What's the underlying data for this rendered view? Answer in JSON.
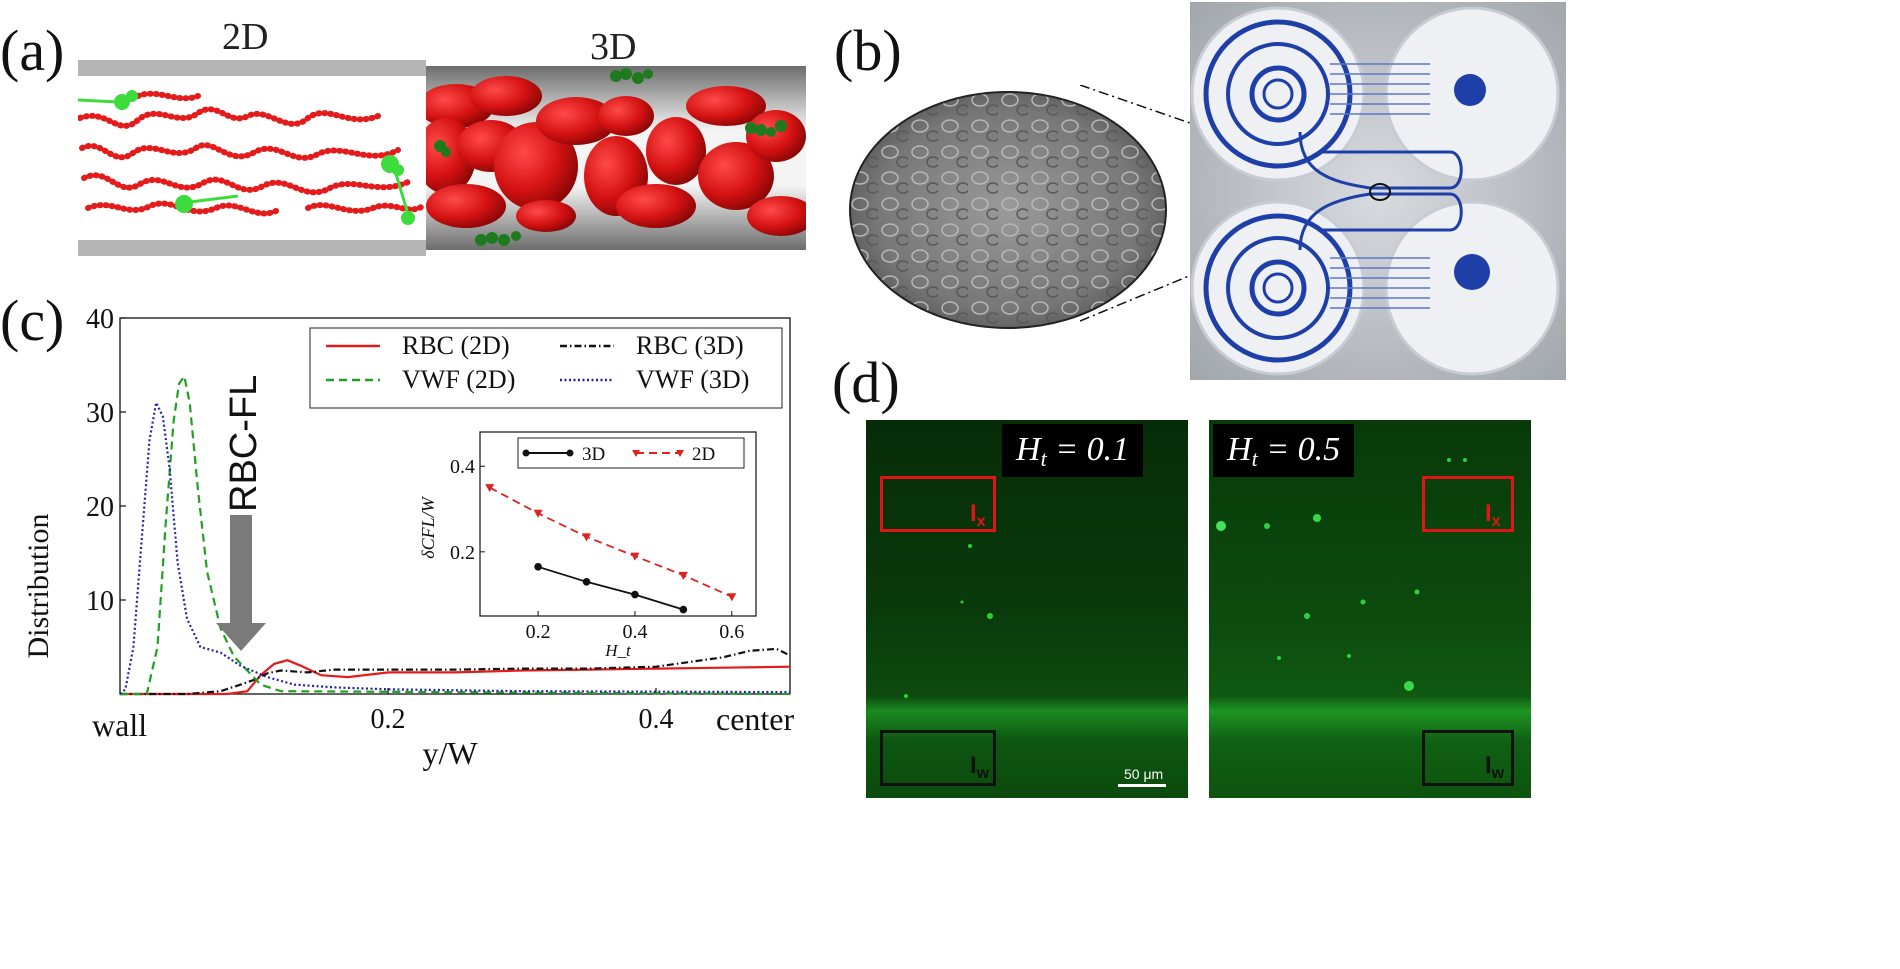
{
  "panels": {
    "a": {
      "label": "(a)",
      "title_2d": "2D",
      "title_3d": "3D"
    },
    "b": {
      "label": "(b)"
    },
    "c": {
      "label": "(c)",
      "annotation": "RBC-FL"
    },
    "d": {
      "label": "(d)",
      "left_value": "H_t = 0.1",
      "right_value": "H_t = 0.5",
      "roi_x": "I_x",
      "roi_w": "I_w",
      "scale_bar": "50 μm"
    }
  },
  "colors": {
    "rbc": "#e31b1b",
    "vwf": "#22cc22",
    "channel_wall": "#b5b5b5",
    "fluor_green": "#0f5a12",
    "roi_red": "#e01515",
    "roi_black": "#111111",
    "chip_blue": "#1e3ea8"
  },
  "chart_data": [
    {
      "type": "line",
      "xlabel": "y/W",
      "ylabel": "Distribution",
      "xlim": [
        0,
        0.5
      ],
      "ylim": [
        0,
        40
      ],
      "xticks": [
        0.2,
        0.4
      ],
      "yticks": [
        10,
        20,
        30,
        40
      ],
      "x_end_labels": {
        "left": "wall",
        "right": "center"
      },
      "legend_position": "top-right",
      "series": [
        {
          "name": "RBC (2D)",
          "color": "#e31b1b",
          "style": "solid",
          "x": [
            0.0,
            0.08,
            0.095,
            0.105,
            0.115,
            0.125,
            0.135,
            0.15,
            0.17,
            0.2,
            0.25,
            0.3,
            0.35,
            0.4,
            0.45,
            0.5
          ],
          "y": [
            0,
            0,
            0.3,
            2.0,
            3.2,
            3.6,
            3.0,
            2.0,
            1.8,
            2.3,
            2.3,
            2.5,
            2.6,
            2.7,
            2.8,
            2.9
          ]
        },
        {
          "name": "RBC (3D)",
          "color": "#111111",
          "style": "dashdot",
          "x": [
            0.0,
            0.05,
            0.075,
            0.09,
            0.1,
            0.11,
            0.12,
            0.14,
            0.16,
            0.2,
            0.25,
            0.3,
            0.35,
            0.4,
            0.45,
            0.47,
            0.49,
            0.5
          ],
          "y": [
            0,
            0,
            0.3,
            1.0,
            1.5,
            2.2,
            2.5,
            2.3,
            2.6,
            2.6,
            2.6,
            2.7,
            2.7,
            2.9,
            3.9,
            4.6,
            4.8,
            4.1
          ]
        },
        {
          "name": "VWF (2D)",
          "color": "#22a022",
          "style": "dashed",
          "x": [
            0.0,
            0.02,
            0.028,
            0.034,
            0.04,
            0.044,
            0.048,
            0.052,
            0.058,
            0.065,
            0.075,
            0.085,
            0.095,
            0.105,
            0.12,
            0.5
          ],
          "y": [
            0,
            0,
            5,
            18,
            29,
            33,
            33.8,
            31,
            22,
            13,
            7,
            4,
            2.5,
            1.0,
            0.3,
            0
          ]
        },
        {
          "name": "VWF (3D)",
          "color": "#2222aa",
          "style": "dotted",
          "x": [
            0.0,
            0.004,
            0.01,
            0.016,
            0.022,
            0.027,
            0.032,
            0.037,
            0.043,
            0.05,
            0.06,
            0.075,
            0.09,
            0.11,
            0.13,
            0.16,
            0.2,
            0.3,
            0.5
          ],
          "y": [
            0,
            0.5,
            5,
            16,
            27,
            31,
            29.5,
            24,
            14,
            8,
            5,
            4.4,
            3,
            1.8,
            1.0,
            0.7,
            0.5,
            0.3,
            0.2
          ]
        }
      ]
    },
    {
      "type": "line",
      "xlabel": "H_t",
      "ylabel": "δCFL/W",
      "xlim": [
        0.08,
        0.65
      ],
      "ylim": [
        0.05,
        0.48
      ],
      "xticks": [
        0.2,
        0.4,
        0.6
      ],
      "yticks": [
        0.2,
        0.4
      ],
      "legend_position": "top",
      "series": [
        {
          "name": "3D",
          "color": "#111111",
          "style": "solid",
          "marker": "circle",
          "x": [
            0.2,
            0.3,
            0.4,
            0.5
          ],
          "y": [
            0.165,
            0.13,
            0.1,
            0.065
          ]
        },
        {
          "name": "2D",
          "color": "#dd2222",
          "style": "dashed",
          "marker": "triangle",
          "x": [
            0.1,
            0.2,
            0.3,
            0.4,
            0.5,
            0.6
          ],
          "y": [
            0.35,
            0.29,
            0.235,
            0.19,
            0.145,
            0.095
          ]
        }
      ]
    }
  ]
}
